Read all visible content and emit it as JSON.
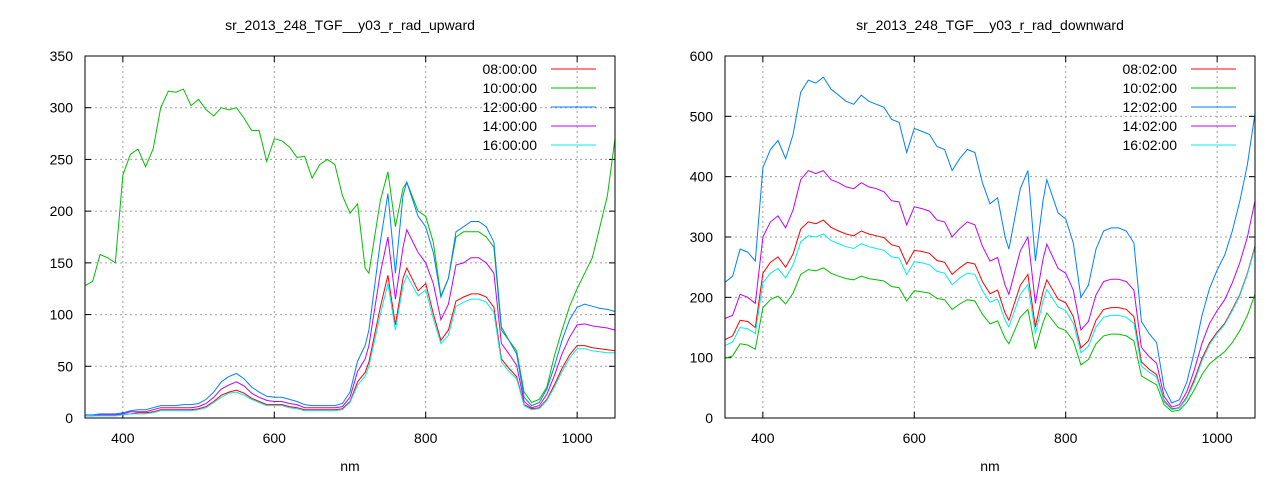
{
  "chart_data": [
    {
      "type": "line",
      "title": "sr_2013_248_TGF__y03_r_rad_upward",
      "xlabel": "nm",
      "ylabel": "",
      "xlim": [
        350,
        1050
      ],
      "ylim": [
        0,
        350
      ],
      "xticks": [
        400,
        600,
        800,
        1000
      ],
      "yticks": [
        0,
        50,
        100,
        150,
        200,
        250,
        300,
        350
      ],
      "grid": true,
      "legend": "top-right",
      "x": [
        350,
        360,
        370,
        380,
        390,
        400,
        410,
        420,
        430,
        440,
        450,
        460,
        470,
        480,
        490,
        500,
        510,
        520,
        530,
        540,
        550,
        560,
        570,
        580,
        590,
        600,
        610,
        620,
        630,
        640,
        650,
        660,
        670,
        680,
        690,
        700,
        710,
        720,
        725,
        740,
        750,
        760,
        770,
        775,
        790,
        800,
        810,
        820,
        830,
        840,
        850,
        860,
        870,
        880,
        890,
        900,
        910,
        920,
        930,
        940,
        950,
        960,
        970,
        980,
        990,
        1000,
        1010,
        1020,
        1030,
        1040,
        1050
      ],
      "series": [
        {
          "name": "08:00:00",
          "color": "#ff0000",
          "values": [
            2,
            2,
            3,
            3,
            3,
            3,
            4,
            5,
            5,
            6,
            8,
            8,
            8,
            8,
            8,
            9,
            11,
            16,
            22,
            25,
            27,
            24,
            19,
            16,
            13,
            13,
            13,
            11,
            10,
            8,
            8,
            8,
            8,
            8,
            9,
            16,
            35,
            44,
            54,
            107,
            138,
            90,
            135,
            145,
            123,
            130,
            101,
            75,
            85,
            113,
            117,
            120,
            120,
            117,
            107,
            57,
            48,
            40,
            13,
            9,
            10,
            18,
            32,
            48,
            61,
            70,
            70,
            68,
            67,
            66,
            65
          ]
        },
        {
          "name": "10:00:00",
          "color": "#00c000",
          "values": [
            128,
            132,
            158,
            155,
            150,
            235,
            255,
            260,
            243,
            260,
            300,
            316,
            315,
            318,
            302,
            308,
            298,
            292,
            300,
            298,
            300,
            290,
            278,
            278,
            248,
            270,
            268,
            262,
            252,
            253,
            232,
            245,
            250,
            245,
            215,
            198,
            207,
            145,
            140,
            210,
            238,
            185,
            222,
            228,
            200,
            195,
            170,
            118,
            135,
            175,
            180,
            180,
            180,
            175,
            165,
            85,
            75,
            65,
            25,
            15,
            18,
            30,
            60,
            85,
            108,
            125,
            140,
            155,
            185,
            215,
            270
          ]
        },
        {
          "name": "12:00:00",
          "color": "#0080ff",
          "values": [
            3,
            3,
            4,
            4,
            4,
            5,
            7,
            8,
            8,
            10,
            12,
            12,
            12,
            13,
            13,
            14,
            18,
            25,
            35,
            40,
            43,
            38,
            30,
            25,
            21,
            20,
            20,
            18,
            16,
            13,
            12,
            12,
            12,
            12,
            14,
            25,
            55,
            70,
            85,
            170,
            217,
            140,
            215,
            228,
            195,
            185,
            160,
            117,
            135,
            180,
            185,
            190,
            190,
            185,
            170,
            88,
            75,
            62,
            20,
            12,
            15,
            28,
            50,
            75,
            95,
            107,
            110,
            108,
            106,
            105,
            103
          ]
        },
        {
          "name": "14:00:00",
          "color": "#c000ff",
          "values": [
            2,
            2,
            3,
            3,
            3,
            4,
            6,
            6,
            6,
            8,
            10,
            10,
            10,
            10,
            10,
            11,
            14,
            20,
            28,
            32,
            35,
            31,
            24,
            20,
            17,
            16,
            16,
            14,
            13,
            10,
            10,
            10,
            10,
            10,
            11,
            20,
            45,
            57,
            70,
            140,
            175,
            115,
            165,
            182,
            160,
            150,
            130,
            95,
            110,
            148,
            150,
            155,
            155,
            150,
            140,
            72,
            62,
            51,
            16,
            10,
            12,
            23,
            41,
            62,
            78,
            90,
            91,
            89,
            88,
            87,
            85
          ]
        },
        {
          "name": "16:00:00",
          "color": "#00eeee",
          "values": [
            2,
            2,
            2,
            2,
            2,
            3,
            4,
            4,
            4,
            5,
            7,
            7,
            7,
            7,
            7,
            8,
            10,
            15,
            20,
            24,
            25,
            22,
            18,
            15,
            12,
            12,
            12,
            10,
            9,
            7,
            7,
            7,
            7,
            7,
            8,
            15,
            32,
            40,
            50,
            100,
            130,
            85,
            128,
            138,
            118,
            124,
            96,
            72,
            80,
            108,
            112,
            115,
            115,
            112,
            102,
            54,
            45,
            38,
            12,
            8,
            9,
            17,
            30,
            45,
            58,
            67,
            67,
            65,
            64,
            63,
            63
          ]
        }
      ]
    },
    {
      "type": "line",
      "title": "sr_2013_248_TGF__y03_r_rad_downward",
      "xlabel": "nm",
      "ylabel": "",
      "xlim": [
        350,
        1050
      ],
      "ylim": [
        0,
        600
      ],
      "xticks": [
        400,
        600,
        800,
        1000
      ],
      "yticks": [
        0,
        100,
        200,
        300,
        400,
        500,
        600
      ],
      "grid": true,
      "legend": "top-right",
      "x": [
        350,
        360,
        370,
        380,
        390,
        400,
        410,
        420,
        430,
        440,
        450,
        460,
        470,
        480,
        490,
        500,
        510,
        520,
        530,
        540,
        550,
        560,
        570,
        580,
        590,
        600,
        610,
        620,
        630,
        640,
        650,
        660,
        670,
        680,
        690,
        700,
        710,
        720,
        725,
        740,
        750,
        760,
        770,
        775,
        790,
        800,
        810,
        820,
        830,
        840,
        850,
        860,
        870,
        880,
        890,
        900,
        910,
        920,
        930,
        940,
        950,
        960,
        970,
        980,
        990,
        1000,
        1010,
        1020,
        1030,
        1040,
        1050
      ],
      "series": [
        {
          "name": "08:02:00",
          "color": "#ff0000",
          "values": [
            130,
            136,
            162,
            160,
            150,
            240,
            258,
            267,
            250,
            272,
            313,
            325,
            322,
            328,
            316,
            310,
            305,
            302,
            310,
            305,
            302,
            299,
            287,
            284,
            255,
            278,
            276,
            273,
            261,
            258,
            238,
            249,
            258,
            255,
            226,
            206,
            212,
            174,
            162,
            220,
            238,
            151,
            209,
            229,
            197,
            191,
            168,
            116,
            128,
            162,
            180,
            183,
            183,
            180,
            168,
            93,
            81,
            72,
            29,
            15,
            17,
            35,
            64,
            99,
            125,
            142,
            157,
            180,
            205,
            240,
            285
          ]
        },
        {
          "name": "10:02:00",
          "color": "#00c000",
          "values": [
            99,
            103,
            123,
            121,
            114,
            183,
            196,
            202,
            189,
            207,
            238,
            246,
            244,
            249,
            240,
            235,
            231,
            229,
            235,
            231,
            229,
            227,
            218,
            216,
            194,
            211,
            209,
            207,
            198,
            196,
            180,
            189,
            196,
            194,
            172,
            156,
            161,
            132,
            123,
            167,
            180,
            114,
            158,
            174,
            150,
            145,
            128,
            88,
            97,
            123,
            136,
            139,
            139,
            136,
            128,
            70,
            62,
            55,
            22,
            11,
            13,
            26,
            47,
            72,
            90,
            100,
            110,
            125,
            145,
            170,
            205
          ]
        },
        {
          "name": "12:02:00",
          "color": "#0080ff",
          "values": [
            225,
            235,
            280,
            275,
            260,
            415,
            445,
            460,
            430,
            470,
            540,
            560,
            555,
            565,
            545,
            535,
            525,
            520,
            535,
            525,
            520,
            515,
            495,
            490,
            440,
            480,
            475,
            470,
            450,
            445,
            410,
            430,
            445,
            440,
            390,
            355,
            365,
            300,
            280,
            380,
            410,
            260,
            360,
            395,
            340,
            330,
            290,
            200,
            220,
            280,
            310,
            315,
            315,
            310,
            290,
            160,
            140,
            125,
            50,
            25,
            30,
            60,
            110,
            170,
            215,
            245,
            270,
            310,
            360,
            420,
            505
          ]
        },
        {
          "name": "14:02:00",
          "color": "#c000ff",
          "values": [
            165,
            170,
            205,
            200,
            190,
            300,
            325,
            335,
            315,
            345,
            395,
            410,
            405,
            410,
            395,
            390,
            383,
            380,
            390,
            383,
            380,
            375,
            360,
            358,
            320,
            350,
            347,
            343,
            328,
            325,
            300,
            314,
            325,
            320,
            285,
            260,
            266,
            220,
            205,
            277,
            300,
            190,
            263,
            288,
            248,
            240,
            212,
            146,
            160,
            204,
            226,
            230,
            230,
            226,
            212,
            117,
            102,
            91,
            36,
            18,
            22,
            44,
            80,
            124,
            157,
            178,
            196,
            224,
            258,
            300,
            360
          ]
        },
        {
          "name": "16:02:00",
          "color": "#00eeee",
          "values": [
            120,
            126,
            150,
            148,
            140,
            224,
            240,
            248,
            232,
            254,
            292,
            302,
            300,
            305,
            294,
            289,
            284,
            281,
            289,
            284,
            281,
            278,
            267,
            265,
            238,
            259,
            257,
            254,
            243,
            240,
            221,
            232,
            240,
            238,
            211,
            192,
            197,
            162,
            151,
            205,
            221,
            140,
            194,
            213,
            184,
            178,
            157,
            108,
            119,
            151,
            167,
            170,
            170,
            167,
            157,
            86,
            76,
            68,
            27,
            14,
            16,
            33,
            60,
            95,
            122,
            140,
            155,
            178,
            203,
            238,
            282
          ]
        }
      ]
    }
  ]
}
